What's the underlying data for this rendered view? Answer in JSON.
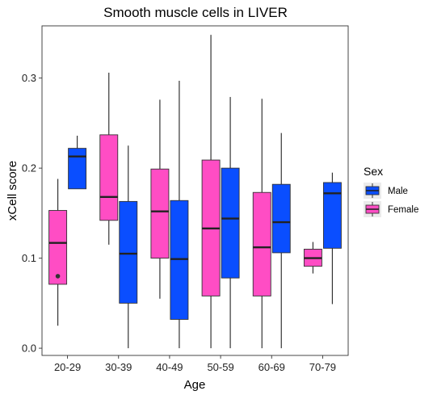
{
  "chart_data": {
    "type": "boxplot",
    "title": "Smooth muscle cells in LIVER",
    "xlabel": "Age",
    "ylabel": "xCell score",
    "ylim": [
      -0.008,
      0.358
    ],
    "yticks": [
      0.0,
      0.1,
      0.2,
      0.3
    ],
    "ytick_labels": [
      "0.0",
      "0.1",
      "0.2",
      "0.3"
    ],
    "categories": [
      "20-29",
      "30-39",
      "40-49",
      "50-59",
      "60-69",
      "70-79"
    ],
    "grid": false,
    "legend": {
      "title": "Sex",
      "position": "right"
    },
    "series": [
      {
        "name": "Female",
        "color": "#FF4DC4",
        "boxes": [
          {
            "min": 0.025,
            "q1": 0.071,
            "median": 0.117,
            "q3": 0.153,
            "max": 0.188,
            "outliers": [
              0.08
            ]
          },
          {
            "min": 0.115,
            "q1": 0.142,
            "median": 0.168,
            "q3": 0.237,
            "max": 0.306,
            "outliers": []
          },
          {
            "min": 0.055,
            "q1": 0.1,
            "median": 0.152,
            "q3": 0.199,
            "max": 0.276,
            "outliers": []
          },
          {
            "min": 0.0,
            "q1": 0.058,
            "median": 0.133,
            "q3": 0.209,
            "max": 0.348,
            "outliers": []
          },
          {
            "min": 0.0,
            "q1": 0.058,
            "median": 0.112,
            "q3": 0.173,
            "max": 0.277,
            "outliers": []
          },
          {
            "min": 0.083,
            "q1": 0.091,
            "median": 0.1,
            "q3": 0.11,
            "max": 0.118,
            "outliers": []
          }
        ]
      },
      {
        "name": "Male",
        "color": "#0A4EFF",
        "boxes": [
          {
            "min": 0.177,
            "q1": 0.177,
            "median": 0.213,
            "q3": 0.222,
            "max": 0.236,
            "outliers": []
          },
          {
            "min": 0.0,
            "q1": 0.05,
            "median": 0.105,
            "q3": 0.163,
            "max": 0.225,
            "outliers": []
          },
          {
            "min": 0.0,
            "q1": 0.032,
            "median": 0.099,
            "q3": 0.164,
            "max": 0.297,
            "outliers": []
          },
          {
            "min": 0.0,
            "q1": 0.078,
            "median": 0.144,
            "q3": 0.2,
            "max": 0.279,
            "outliers": []
          },
          {
            "min": 0.0,
            "q1": 0.106,
            "median": 0.14,
            "q3": 0.182,
            "max": 0.239,
            "outliers": []
          },
          {
            "min": 0.049,
            "q1": 0.111,
            "median": 0.172,
            "q3": 0.184,
            "max": 0.195,
            "outliers": []
          }
        ]
      }
    ]
  }
}
